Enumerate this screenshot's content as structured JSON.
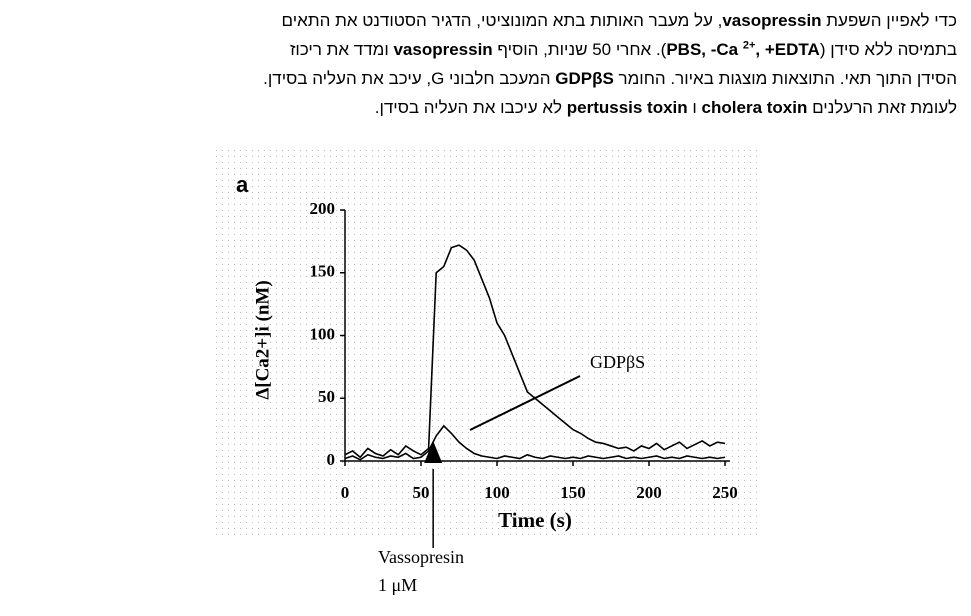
{
  "paragraph": [
    [
      {
        "text": "כדי לאפיין השפעת ",
        "bold": false
      },
      {
        "text": "vasopressin",
        "bold": true
      },
      {
        "text": ",  על מעבר האותות בתא המונוציטי, הדגיר הסטודנט את התאים",
        "bold": false
      }
    ],
    [
      {
        "text": "בתמיסה ללא סידן (",
        "bold": false
      },
      {
        "text": "PBS, -Ca ",
        "bold": true
      },
      {
        "text": "2+",
        "bold": true,
        "sup": true
      },
      {
        "text": ", +EDTA",
        "bold": true
      },
      {
        "text": "). אחרי 50 שניות, הוסיף ",
        "bold": false
      },
      {
        "text": "vasopressin",
        "bold": true
      },
      {
        "text": " ומדד את ריכוז",
        "bold": false
      }
    ],
    [
      {
        "text": "הסידן התוך תאי. התוצאות מוצגות באיור. החומר ",
        "bold": false
      },
      {
        "text": "GDPβS",
        "bold": true
      },
      {
        "text": " המעכב חלבוני G, עיכב את העליה בסידן.",
        "bold": false
      }
    ],
    [
      {
        "text": "לעומת זאת הרעלנים ",
        "bold": false
      },
      {
        "text": "cholera toxin",
        "bold": true
      },
      {
        "text": " ו ",
        "bold": false
      },
      {
        "text": "pertussis toxin",
        "bold": true
      },
      {
        "text": " לא עיכבו את העליה בסידן.",
        "bold": false
      }
    ]
  ],
  "chart_data": {
    "type": "line",
    "panel": "a",
    "ylabel": "Δ[Ca2+]i (nM)",
    "xlabel": "Time (s)",
    "xlim": [
      0,
      250
    ],
    "xticks": [
      0,
      50,
      100,
      150,
      200,
      250
    ],
    "ylim": [
      0,
      200
    ],
    "yticks": [
      0,
      50,
      100,
      150,
      200
    ],
    "x": [
      0,
      5,
      10,
      15,
      20,
      25,
      30,
      35,
      40,
      45,
      50,
      55,
      60,
      65,
      70,
      75,
      80,
      85,
      90,
      95,
      100,
      105,
      110,
      115,
      120,
      125,
      130,
      135,
      140,
      145,
      150,
      155,
      160,
      165,
      170,
      175,
      180,
      185,
      190,
      195,
      200,
      205,
      210,
      215,
      220,
      225,
      230,
      235,
      240,
      245,
      250
    ],
    "series": [
      {
        "color": "#000000",
        "values": [
          5,
          8,
          3,
          10,
          6,
          4,
          9,
          5,
          12,
          8,
          5,
          10,
          150,
          155,
          170,
          172,
          168,
          160,
          145,
          130,
          110,
          100,
          85,
          70,
          55,
          50,
          45,
          40,
          35,
          30,
          25,
          22,
          18,
          15,
          14,
          12,
          10,
          11,
          8,
          12,
          10,
          14,
          9,
          12,
          15,
          10,
          13,
          16,
          12,
          15,
          14
        ]
      },
      {
        "name": "GDPβS",
        "color": "#000000",
        "values": [
          2,
          4,
          1,
          5,
          3,
          2,
          4,
          3,
          6,
          2,
          3,
          8,
          20,
          28,
          22,
          15,
          10,
          6,
          4,
          3,
          2,
          4,
          3,
          2,
          5,
          3,
          2,
          4,
          3,
          2,
          3,
          2,
          4,
          3,
          2,
          3,
          4,
          2,
          3,
          2,
          3,
          4,
          2,
          3,
          2,
          4,
          3,
          2,
          3,
          2,
          3
        ]
      }
    ],
    "arrow_x": 58,
    "arrow_label": [
      "Vassopresin",
      "1 μM"
    ]
  }
}
